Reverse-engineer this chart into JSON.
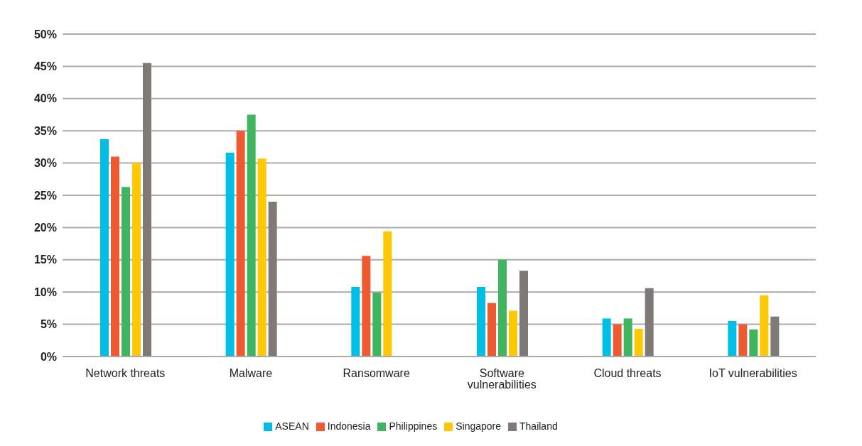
{
  "chart_data": {
    "type": "bar",
    "categories": [
      "Network threats",
      "Malware",
      "Ransomware",
      "Software vulnerabilities",
      "Cloud threats",
      "IoT vulnerabilities"
    ],
    "series": [
      {
        "name": "ASEAN",
        "color": "#00bfe6",
        "values": [
          33.7,
          31.6,
          10.8,
          10.8,
          5.9,
          5.5
        ]
      },
      {
        "name": "Indonesia",
        "color": "#f05a30",
        "values": [
          31,
          35,
          15.6,
          8.3,
          5,
          5
        ]
      },
      {
        "name": "Philippines",
        "color": "#3fb560",
        "values": [
          26.3,
          37.5,
          9.9,
          15,
          5.9,
          4.2
        ]
      },
      {
        "name": "Singapore",
        "color": "#ffc805",
        "values": [
          30,
          30.7,
          19.4,
          7.1,
          4.3,
          9.5
        ]
      },
      {
        "name": "Thailand",
        "color": "#7f7a78",
        "values": [
          45.5,
          24,
          null,
          13.3,
          10.6,
          6.2
        ]
      }
    ],
    "ylim": [
      0,
      50
    ],
    "yticks": [
      {
        "value": 0,
        "label": "0%"
      },
      {
        "value": 5,
        "label": "5%"
      },
      {
        "value": 10,
        "label": "10%"
      },
      {
        "value": 15,
        "label": "15%"
      },
      {
        "value": 20,
        "label": "20%"
      },
      {
        "value": 25,
        "label": "25%"
      },
      {
        "value": 30,
        "label": "30%"
      },
      {
        "value": 35,
        "label": "35%"
      },
      {
        "value": 40,
        "label": "40%"
      },
      {
        "value": 45,
        "label": "45%"
      },
      {
        "value": 50,
        "label": "50%"
      }
    ],
    "grid": "y",
    "legend": "bottom"
  }
}
